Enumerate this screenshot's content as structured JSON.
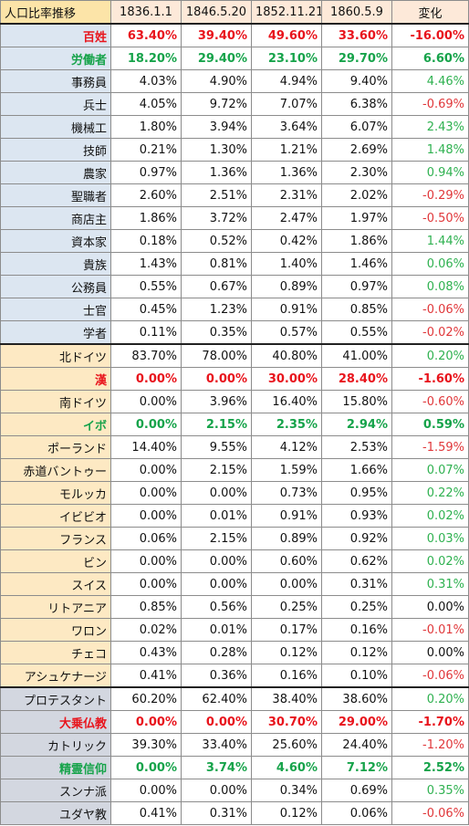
{
  "header": {
    "title": "人口比率推移",
    "dates": [
      "1836.1.1",
      "1846.5.20",
      "1852.11.21",
      "1860.5.9"
    ],
    "change": "変化"
  },
  "rows": [
    {
      "label": "百姓",
      "v": [
        "63.40%",
        "39.40%",
        "49.60%",
        "33.60%"
      ],
      "chg": "-16.00%",
      "group": "occupation",
      "emph": "red",
      "sign": "neg"
    },
    {
      "label": "労働者",
      "v": [
        "18.20%",
        "29.40%",
        "23.10%",
        "29.70%"
      ],
      "chg": "6.60%",
      "group": "occupation",
      "emph": "green",
      "sign": "pos"
    },
    {
      "label": "事務員",
      "v": [
        "4.03%",
        "4.90%",
        "4.94%",
        "9.40%"
      ],
      "chg": "4.46%",
      "group": "occupation",
      "sign": "pos"
    },
    {
      "label": "兵士",
      "v": [
        "4.05%",
        "9.72%",
        "7.07%",
        "6.38%"
      ],
      "chg": "-0.69%",
      "group": "occupation",
      "sign": "neg"
    },
    {
      "label": "機械工",
      "v": [
        "1.80%",
        "3.94%",
        "3.64%",
        "6.07%"
      ],
      "chg": "2.43%",
      "group": "occupation",
      "sign": "pos"
    },
    {
      "label": "技師",
      "v": [
        "0.21%",
        "1.30%",
        "1.21%",
        "2.69%"
      ],
      "chg": "1.48%",
      "group": "occupation",
      "sign": "pos"
    },
    {
      "label": "農家",
      "v": [
        "0.97%",
        "1.36%",
        "1.36%",
        "2.30%"
      ],
      "chg": "0.94%",
      "group": "occupation",
      "sign": "pos"
    },
    {
      "label": "聖職者",
      "v": [
        "2.60%",
        "2.51%",
        "2.31%",
        "2.02%"
      ],
      "chg": "-0.29%",
      "group": "occupation",
      "sign": "neg"
    },
    {
      "label": "商店主",
      "v": [
        "1.86%",
        "3.72%",
        "2.47%",
        "1.97%"
      ],
      "chg": "-0.50%",
      "group": "occupation",
      "sign": "neg"
    },
    {
      "label": "資本家",
      "v": [
        "0.18%",
        "0.52%",
        "0.42%",
        "1.86%"
      ],
      "chg": "1.44%",
      "group": "occupation",
      "sign": "pos"
    },
    {
      "label": "貴族",
      "v": [
        "1.43%",
        "0.81%",
        "1.40%",
        "1.46%"
      ],
      "chg": "0.06%",
      "group": "occupation",
      "sign": "pos"
    },
    {
      "label": "公務員",
      "v": [
        "0.55%",
        "0.67%",
        "0.89%",
        "0.97%"
      ],
      "chg": "0.08%",
      "group": "occupation",
      "sign": "pos"
    },
    {
      "label": "士官",
      "v": [
        "0.45%",
        "1.23%",
        "0.91%",
        "0.85%"
      ],
      "chg": "-0.06%",
      "group": "occupation",
      "sign": "neg"
    },
    {
      "label": "学者",
      "v": [
        "0.11%",
        "0.35%",
        "0.57%",
        "0.55%"
      ],
      "chg": "-0.02%",
      "group": "occupation",
      "sign": "neg",
      "sepBottom": true
    },
    {
      "label": "北ドイツ",
      "v": [
        "83.70%",
        "78.00%",
        "40.80%",
        "41.00%"
      ],
      "chg": "0.20%",
      "group": "culture",
      "sign": "pos"
    },
    {
      "label": "漢",
      "v": [
        "0.00%",
        "0.00%",
        "30.00%",
        "28.40%"
      ],
      "chg": "-1.60%",
      "group": "culture",
      "emph": "red",
      "sign": "neg"
    },
    {
      "label": "南ドイツ",
      "v": [
        "0.00%",
        "3.96%",
        "16.40%",
        "15.80%"
      ],
      "chg": "-0.60%",
      "group": "culture",
      "sign": "neg"
    },
    {
      "label": "イボ",
      "v": [
        "0.00%",
        "2.15%",
        "2.35%",
        "2.94%"
      ],
      "chg": "0.59%",
      "group": "culture",
      "emph": "green",
      "sign": "pos"
    },
    {
      "label": "ポーランド",
      "v": [
        "14.40%",
        "9.55%",
        "4.12%",
        "2.53%"
      ],
      "chg": "-1.59%",
      "group": "culture",
      "sign": "neg"
    },
    {
      "label": "赤道バントゥー",
      "v": [
        "0.00%",
        "2.15%",
        "1.59%",
        "1.66%"
      ],
      "chg": "0.07%",
      "group": "culture",
      "sign": "pos"
    },
    {
      "label": "モルッカ",
      "v": [
        "0.00%",
        "0.00%",
        "0.73%",
        "0.95%"
      ],
      "chg": "0.22%",
      "group": "culture",
      "sign": "pos"
    },
    {
      "label": "イビビオ",
      "v": [
        "0.00%",
        "0.01%",
        "0.91%",
        "0.93%"
      ],
      "chg": "0.02%",
      "group": "culture",
      "sign": "pos"
    },
    {
      "label": "フランス",
      "v": [
        "0.06%",
        "2.15%",
        "0.89%",
        "0.92%"
      ],
      "chg": "0.03%",
      "group": "culture",
      "sign": "pos"
    },
    {
      "label": "ビン",
      "v": [
        "0.00%",
        "0.00%",
        "0.60%",
        "0.62%"
      ],
      "chg": "0.02%",
      "group": "culture",
      "sign": "pos"
    },
    {
      "label": "スイス",
      "v": [
        "0.00%",
        "0.00%",
        "0.00%",
        "0.31%"
      ],
      "chg": "0.31%",
      "group": "culture",
      "sign": "pos"
    },
    {
      "label": "リトアニア",
      "v": [
        "0.85%",
        "0.56%",
        "0.25%",
        "0.25%"
      ],
      "chg": "0.00%",
      "group": "culture",
      "sign": "zero"
    },
    {
      "label": "ワロン",
      "v": [
        "0.02%",
        "0.01%",
        "0.17%",
        "0.16%"
      ],
      "chg": "-0.01%",
      "group": "culture",
      "sign": "neg"
    },
    {
      "label": "チェコ",
      "v": [
        "0.43%",
        "0.28%",
        "0.12%",
        "0.12%"
      ],
      "chg": "0.00%",
      "group": "culture",
      "sign": "zero"
    },
    {
      "label": "アシュケナージ",
      "v": [
        "0.41%",
        "0.36%",
        "0.16%",
        "0.10%"
      ],
      "chg": "-0.06%",
      "group": "culture",
      "sign": "neg",
      "sepBottom": true
    },
    {
      "label": "プロテスタント",
      "v": [
        "60.20%",
        "62.40%",
        "38.40%",
        "38.60%"
      ],
      "chg": "0.20%",
      "group": "religion",
      "sign": "pos"
    },
    {
      "label": "大乗仏教",
      "v": [
        "0.00%",
        "0.00%",
        "30.70%",
        "29.00%"
      ],
      "chg": "-1.70%",
      "group": "religion",
      "emph": "red",
      "sign": "neg"
    },
    {
      "label": "カトリック",
      "v": [
        "39.30%",
        "33.40%",
        "25.60%",
        "24.40%"
      ],
      "chg": "-1.20%",
      "group": "religion",
      "sign": "neg"
    },
    {
      "label": "精霊信仰",
      "v": [
        "0.00%",
        "3.74%",
        "4.60%",
        "7.12%"
      ],
      "chg": "2.52%",
      "group": "religion",
      "emph": "green",
      "sign": "pos"
    },
    {
      "label": "スンナ派",
      "v": [
        "0.00%",
        "0.00%",
        "0.34%",
        "0.69%"
      ],
      "chg": "0.35%",
      "group": "religion",
      "sign": "pos"
    },
    {
      "label": "ユダヤ教",
      "v": [
        "0.41%",
        "0.31%",
        "0.12%",
        "0.06%"
      ],
      "chg": "-0.06%",
      "group": "religion",
      "sign": "neg"
    }
  ]
}
